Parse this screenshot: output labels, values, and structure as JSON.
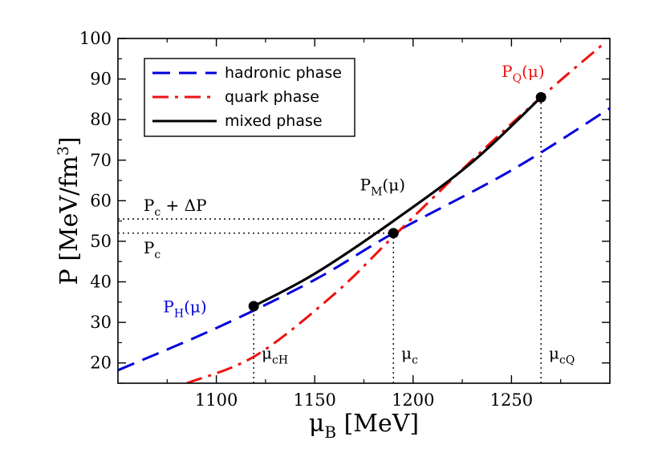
{
  "chart_data": {
    "type": "line",
    "title": "",
    "xlabel": "μ",
    "xlabel_sub": "B",
    "xlabel_unit": " [MeV]",
    "ylabel": "P [MeV/fm",
    "ylabel_sup": "3",
    "ylabel_end": "]",
    "xlim": [
      1050,
      1300
    ],
    "ylim": [
      15,
      100
    ],
    "xticks": [
      1100,
      1150,
      1200,
      1250
    ],
    "yticks": [
      20,
      30,
      40,
      50,
      60,
      70,
      80,
      90,
      100
    ],
    "legend_position": "top-left",
    "series": [
      {
        "name": "hadronic phase",
        "color": "#0000dd",
        "style": "dashed",
        "x": [
          1050,
          1100,
          1150,
          1190,
          1250,
          1300
        ],
        "y": [
          18.2,
          28.6,
          40.5,
          52.0,
          67.5,
          82.8
        ]
      },
      {
        "name": "quark phase",
        "color": "#ee1111",
        "style": "dashdot",
        "x": [
          1085,
          1120,
          1160,
          1190,
          1230,
          1265,
          1298
        ],
        "y": [
          15.0,
          21.8,
          37.0,
          51.2,
          70.0,
          85.5,
          99.2
        ]
      },
      {
        "name": "mixed phase",
        "color": "#000000",
        "style": "solid",
        "x": [
          1119,
          1150,
          1190,
          1230,
          1265
        ],
        "y": [
          34.0,
          42.0,
          55.0,
          69.5,
          85.5
        ]
      }
    ],
    "points": [
      {
        "x": 1119,
        "y": 34.0
      },
      {
        "x": 1190,
        "y": 52.0
      },
      {
        "x": 1265,
        "y": 85.5
      }
    ],
    "reference_lines": [
      {
        "type": "horizontal",
        "y": 55.5,
        "x_end": 1186
      },
      {
        "type": "horizontal",
        "y": 52.0,
        "x_end": 1190
      },
      {
        "type": "vertical",
        "x": 1119,
        "y_end": 34.0
      },
      {
        "type": "vertical",
        "x": 1190,
        "y_end": 52.0
      },
      {
        "type": "vertical",
        "x": 1265,
        "y_end": 85.5
      }
    ],
    "annotations": {
      "pq": {
        "text": "P",
        "sub": "Q",
        "suffix": "(μ)",
        "color": "#ee1111",
        "x": 1245,
        "y": 90.5
      },
      "pm": {
        "text": "P",
        "sub": "M",
        "suffix": "(μ)",
        "color": "#000000",
        "x": 1173,
        "y": 62.5
      },
      "ph": {
        "text": "P",
        "sub": "H",
        "suffix": "(μ)",
        "color": "#0000dd",
        "x": 1073,
        "y": 32.5
      },
      "pcdp": {
        "text": "P",
        "sub": "c",
        "suffix": " + ΔP",
        "color": "#000000",
        "x": 1063,
        "y": 57.5
      },
      "pc": {
        "text": "P",
        "sub": "c",
        "suffix": "",
        "color": "#000000",
        "x": 1063,
        "y": 47.0
      },
      "mch": {
        "text": "μ",
        "sub": "cH",
        "suffix": "",
        "color": "#000000",
        "x": 1123,
        "y": 21.0
      },
      "mc": {
        "text": "μ",
        "sub": "c",
        "suffix": "",
        "color": "#000000",
        "x": 1194,
        "y": 21.0
      },
      "mcq": {
        "text": "μ",
        "sub": "cQ",
        "suffix": "",
        "color": "#000000",
        "x": 1269,
        "y": 21.0
      }
    }
  }
}
